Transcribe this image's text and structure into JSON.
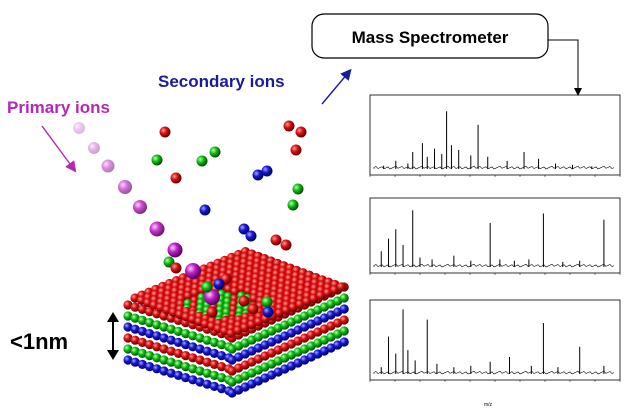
{
  "labels": {
    "mass_spectrometer": "Mass Spectrometer",
    "secondary_ions": "Secondary ions",
    "primary_ions": "Primary ions",
    "depth": "<1nm",
    "spectrum_x_label": "m/z"
  },
  "colors": {
    "primary": "#b428b4",
    "secondary": "#1a1a9c",
    "text": "#000000",
    "atom_red": "#e01010",
    "atom_green": "#10c010",
    "atom_blue": "#1818d8",
    "spectrum_line": "#000000"
  },
  "spectra": [
    {
      "name": "spectrum-top",
      "peaks": [
        [
          0.04,
          0.05
        ],
        [
          0.09,
          0.12
        ],
        [
          0.14,
          0.08
        ],
        [
          0.16,
          0.25
        ],
        [
          0.2,
          0.38
        ],
        [
          0.22,
          0.18
        ],
        [
          0.25,
          0.3
        ],
        [
          0.28,
          0.22
        ],
        [
          0.3,
          0.85
        ],
        [
          0.32,
          0.35
        ],
        [
          0.35,
          0.28
        ],
        [
          0.4,
          0.2
        ],
        [
          0.43,
          0.65
        ],
        [
          0.47,
          0.18
        ],
        [
          0.55,
          0.12
        ],
        [
          0.62,
          0.25
        ],
        [
          0.68,
          0.15
        ],
        [
          0.75,
          0.08
        ],
        [
          0.82,
          0.06
        ],
        [
          0.9,
          0.04
        ]
      ]
    },
    {
      "name": "spectrum-middle",
      "peaks": [
        [
          0.03,
          0.25
        ],
        [
          0.06,
          0.45
        ],
        [
          0.09,
          0.6
        ],
        [
          0.12,
          0.35
        ],
        [
          0.16,
          0.9
        ],
        [
          0.19,
          0.15
        ],
        [
          0.24,
          0.12
        ],
        [
          0.33,
          0.18
        ],
        [
          0.4,
          0.1
        ],
        [
          0.48,
          0.7
        ],
        [
          0.52,
          0.12
        ],
        [
          0.58,
          0.1
        ],
        [
          0.64,
          0.12
        ],
        [
          0.7,
          0.85
        ],
        [
          0.78,
          0.08
        ],
        [
          0.85,
          0.1
        ],
        [
          0.95,
          0.75
        ]
      ]
    },
    {
      "name": "spectrum-bottom",
      "peaks": [
        [
          0.03,
          0.1
        ],
        [
          0.06,
          0.55
        ],
        [
          0.09,
          0.3
        ],
        [
          0.12,
          0.95
        ],
        [
          0.14,
          0.35
        ],
        [
          0.17,
          0.2
        ],
        [
          0.22,
          0.8
        ],
        [
          0.26,
          0.15
        ],
        [
          0.33,
          0.1
        ],
        [
          0.4,
          0.12
        ],
        [
          0.48,
          0.18
        ],
        [
          0.56,
          0.25
        ],
        [
          0.65,
          0.12
        ],
        [
          0.7,
          0.75
        ],
        [
          0.76,
          0.1
        ],
        [
          0.85,
          0.4
        ],
        [
          0.95,
          0.12
        ]
      ]
    }
  ]
}
